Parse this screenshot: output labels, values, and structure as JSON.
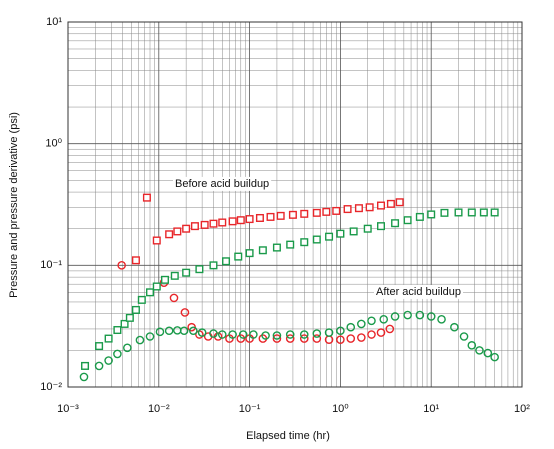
{
  "chart_data": {
    "type": "scatter",
    "xlabel": "Elapsed time (hr)",
    "ylabel": "Pressure and pressure derivative (psi)",
    "annotations": [
      "Before acid buildup",
      "After acid buildup"
    ],
    "xscale": "log",
    "yscale": "log",
    "grid": true,
    "minor_grid": true,
    "xlim": [
      0.001,
      100
    ],
    "ylim": [
      0.01,
      10
    ],
    "xticks": [
      {
        "value": 0.001,
        "label": "10⁻³"
      },
      {
        "value": 0.01,
        "label": "10⁻²"
      },
      {
        "value": 0.1,
        "label": "10⁻¹"
      },
      {
        "value": 1,
        "label": "10⁰"
      },
      {
        "value": 10,
        "label": "10¹"
      },
      {
        "value": 100,
        "label": "10²"
      }
    ],
    "yticks": [
      {
        "value": 0.01,
        "label": "10⁻²"
      },
      {
        "value": 0.1,
        "label": "10⁻¹"
      },
      {
        "value": 1,
        "label": "10⁰"
      },
      {
        "value": 10,
        "label": "10¹"
      }
    ],
    "series": [
      {
        "color": "#e8262a",
        "marker": "square",
        "x": [
          0.0056,
          0.0074,
          0.0095,
          0.013,
          0.016,
          0.02,
          0.025,
          0.032,
          0.04,
          0.05,
          0.065,
          0.08,
          0.1,
          0.13,
          0.17,
          0.22,
          0.3,
          0.4,
          0.55,
          0.7,
          0.9,
          1.2,
          1.6,
          2.1,
          2.8,
          3.6,
          4.5
        ],
        "values": [
          0.11,
          0.36,
          0.16,
          0.18,
          0.19,
          0.2,
          0.21,
          0.215,
          0.22,
          0.225,
          0.23,
          0.235,
          0.24,
          0.245,
          0.25,
          0.255,
          0.26,
          0.265,
          0.27,
          0.275,
          0.28,
          0.29,
          0.295,
          0.3,
          0.31,
          0.32,
          0.33
        ]
      },
      {
        "color": "#e8262a",
        "marker": "circle",
        "x": [
          0.0039,
          0.0114,
          0.0147,
          0.0194,
          0.023,
          0.028,
          0.035,
          0.045,
          0.06,
          0.08,
          0.1,
          0.14,
          0.2,
          0.28,
          0.4,
          0.55,
          0.75,
          1.0,
          1.3,
          1.7,
          2.2,
          2.8,
          3.5
        ],
        "values": [
          0.1,
          0.072,
          0.054,
          0.041,
          0.031,
          0.027,
          0.026,
          0.026,
          0.025,
          0.025,
          0.025,
          0.025,
          0.025,
          0.025,
          0.025,
          0.025,
          0.0245,
          0.0245,
          0.025,
          0.0255,
          0.027,
          0.028,
          0.03
        ]
      },
      {
        "color": "#1a9a4a",
        "marker": "square",
        "x": [
          0.00154,
          0.0022,
          0.0028,
          0.0035,
          0.0042,
          0.0048,
          0.0056,
          0.0065,
          0.008,
          0.0095,
          0.0117,
          0.015,
          0.02,
          0.028,
          0.04,
          0.055,
          0.075,
          0.1,
          0.14,
          0.2,
          0.28,
          0.4,
          0.55,
          0.75,
          1.0,
          1.4,
          2.0,
          2.8,
          4.0,
          5.5,
          7.5,
          10,
          14,
          20,
          28,
          38,
          50
        ],
        "values": [
          0.0149,
          0.0217,
          0.025,
          0.0294,
          0.033,
          0.037,
          0.043,
          0.052,
          0.06,
          0.067,
          0.076,
          0.082,
          0.087,
          0.093,
          0.1,
          0.108,
          0.118,
          0.126,
          0.133,
          0.14,
          0.148,
          0.155,
          0.163,
          0.172,
          0.182,
          0.19,
          0.2,
          0.21,
          0.222,
          0.235,
          0.25,
          0.262,
          0.27,
          0.272,
          0.272,
          0.272,
          0.272
        ]
      },
      {
        "color": "#1a9a4a",
        "marker": "circle",
        "x": [
          0.0015,
          0.0022,
          0.0028,
          0.0035,
          0.0045,
          0.0062,
          0.008,
          0.0103,
          0.013,
          0.016,
          0.019,
          0.024,
          0.03,
          0.04,
          0.05,
          0.065,
          0.085,
          0.11,
          0.15,
          0.2,
          0.28,
          0.4,
          0.55,
          0.75,
          1.0,
          1.3,
          1.7,
          2.2,
          3.0,
          4.0,
          5.5,
          7.5,
          10,
          13,
          18,
          23,
          28,
          34,
          42,
          50
        ],
        "values": [
          0.0121,
          0.0149,
          0.0165,
          0.0187,
          0.021,
          0.0243,
          0.026,
          0.0284,
          0.029,
          0.0292,
          0.029,
          0.029,
          0.028,
          0.0275,
          0.027,
          0.027,
          0.027,
          0.027,
          0.0265,
          0.0265,
          0.027,
          0.027,
          0.0275,
          0.028,
          0.029,
          0.031,
          0.033,
          0.035,
          0.036,
          0.038,
          0.039,
          0.039,
          0.038,
          0.036,
          0.031,
          0.026,
          0.022,
          0.02,
          0.019,
          0.0176
        ]
      }
    ]
  }
}
